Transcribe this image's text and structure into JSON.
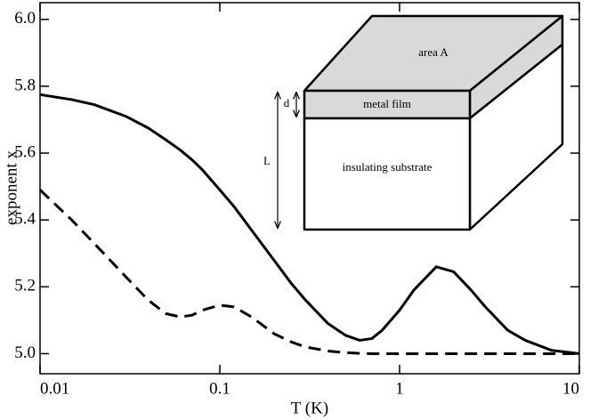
{
  "chart_data": {
    "type": "line",
    "x_label": "T  (K)",
    "y_label": "exponent x",
    "xscale": "log",
    "x": [
      0.01,
      0.015,
      0.02,
      0.03,
      0.04,
      0.05,
      0.06,
      0.07,
      0.08,
      0.1,
      0.12,
      0.15,
      0.2,
      0.25,
      0.3,
      0.4,
      0.5,
      0.6,
      0.7,
      0.8,
      1,
      1.2,
      1.6,
      2,
      2.5,
      3,
      4,
      5,
      7,
      10
    ],
    "series": [
      {
        "color": "#000000",
        "dashed": false,
        "values": [
          5.775,
          5.76,
          5.745,
          5.71,
          5.675,
          5.64,
          5.61,
          5.58,
          5.55,
          5.49,
          5.44,
          5.37,
          5.28,
          5.21,
          5.16,
          5.09,
          5.055,
          5.04,
          5.045,
          5.07,
          5.13,
          5.19,
          5.26,
          5.245,
          5.19,
          5.14,
          5.07,
          5.04,
          5.01,
          5.0
        ]
      },
      {
        "color": "#000000",
        "dashed": true,
        "values": [
          5.49,
          5.4,
          5.33,
          5.23,
          5.16,
          5.12,
          5.11,
          5.115,
          5.13,
          5.145,
          5.14,
          5.11,
          5.06,
          5.035,
          5.02,
          5.008,
          5.003,
          5.001,
          5.0,
          5.0,
          5.0,
          5.0,
          5.0,
          5.0,
          5.0,
          5.0,
          5.0,
          5.0,
          5.0,
          5.0
        ]
      }
    ],
    "xlim": [
      0.01,
      10
    ],
    "xticks": [
      0.01,
      0.1,
      1,
      10
    ],
    "ylim": [
      4.94,
      6.05
    ],
    "yticks": [
      {
        "value": 5,
        "label": "5.0"
      },
      {
        "value": 5.2,
        "label": "5.2"
      },
      {
        "value": 5.4,
        "label": "5.4"
      },
      {
        "value": 5.6,
        "label": "5.6"
      },
      {
        "value": 5.8,
        "label": "5.8"
      },
      {
        "value": 6,
        "label": "6.0"
      }
    ],
    "annotations": [
      "area A",
      "metal film",
      "insulating substrate",
      "L",
      "d"
    ]
  }
}
